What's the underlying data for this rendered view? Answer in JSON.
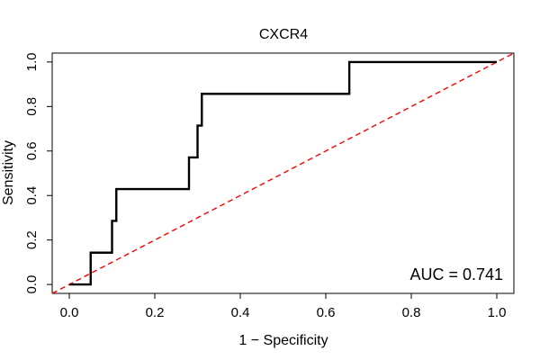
{
  "chart_data": {
    "type": "line",
    "title": "CXCR4",
    "xlabel": "1 − Specificity",
    "ylabel": "Sensitivity",
    "xlim": [
      -0.04,
      1.04
    ],
    "ylim": [
      -0.04,
      1.04
    ],
    "x_ticks": [
      0.0,
      0.2,
      0.4,
      0.6,
      0.8,
      1.0
    ],
    "x_tick_labels": [
      "0.0",
      "0.2",
      "0.4",
      "0.6",
      "0.8",
      "1.0"
    ],
    "y_ticks": [
      0.0,
      0.2,
      0.4,
      0.6,
      0.8,
      1.0
    ],
    "y_tick_labels": [
      "0.0",
      "0.2",
      "0.4",
      "0.6",
      "0.8",
      "1.0"
    ],
    "grid": false,
    "legend": "none",
    "annotation": "AUC = 0.741",
    "series": [
      {
        "type": "step",
        "color": "#000000",
        "x": [
          0.0,
          0.05,
          0.05,
          0.1,
          0.1,
          0.11,
          0.11,
          0.28,
          0.28,
          0.3,
          0.3,
          0.31,
          0.31,
          0.655,
          0.655,
          1.0
        ],
        "y": [
          0.0,
          0.0,
          0.143,
          0.143,
          0.286,
          0.286,
          0.429,
          0.429,
          0.571,
          0.571,
          0.714,
          0.714,
          0.857,
          0.857,
          1.0,
          1.0
        ]
      },
      {
        "type": "diagonal",
        "color": "#ff0000",
        "style": "dashed",
        "x": [
          -0.04,
          1.04
        ],
        "y": [
          -0.04,
          1.04
        ]
      }
    ]
  }
}
